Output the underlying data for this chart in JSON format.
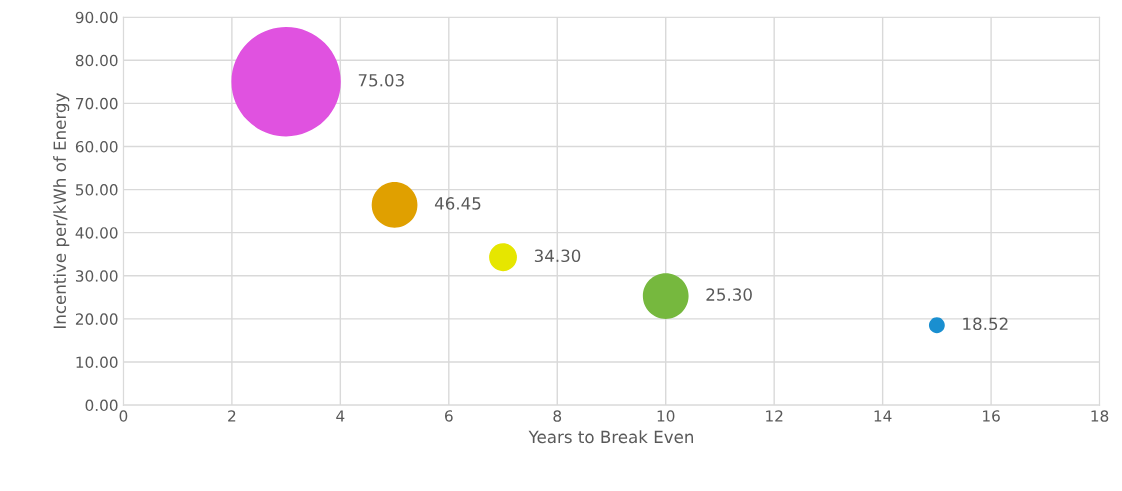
{
  "chart_data": {
    "type": "bubble",
    "xlabel": "Years to Break Even",
    "ylabel": "Incentive per/kWh of Energy",
    "x": [
      3,
      5,
      7,
      10,
      15
    ],
    "values": [
      75.03,
      46.45,
      34.3,
      25.3,
      18.52
    ],
    "sizes": [
      1,
      0.175,
      0.065,
      0.175,
      0.021
    ],
    "colors": [
      "#e052e0",
      "#e0a000",
      "#e6e600",
      "#76b83e",
      "#1a8fd0"
    ],
    "value_labels": [
      "75.03",
      "46.45",
      "34.30",
      "25.30",
      "18.52"
    ],
    "xlim": [
      0,
      18
    ],
    "xticks": [
      0,
      2,
      4,
      6,
      8,
      10,
      12,
      14,
      16,
      18
    ],
    "ylim": [
      0,
      90
    ],
    "yticks": [
      {
        "value": 0,
        "label": "0.00"
      },
      {
        "value": 10,
        "label": "10.00"
      },
      {
        "value": 20,
        "label": "20.00"
      },
      {
        "value": 30,
        "label": "30.00"
      },
      {
        "value": 40,
        "label": "40.00"
      },
      {
        "value": 50,
        "label": "50.00"
      },
      {
        "value": 60,
        "label": "60.00"
      },
      {
        "value": 70,
        "label": "70.00"
      },
      {
        "value": 80,
        "label": "80.00"
      },
      {
        "value": 90,
        "label": "90.00"
      }
    ],
    "grid": true,
    "legend": false
  }
}
